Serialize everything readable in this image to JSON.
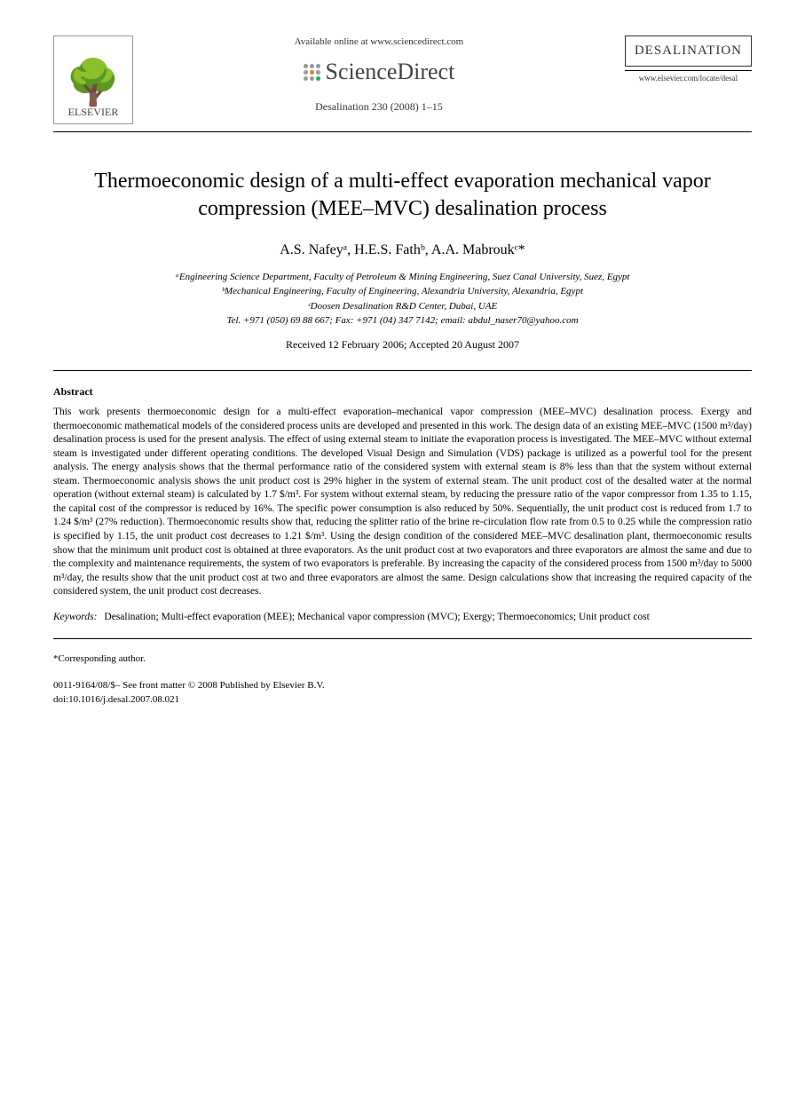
{
  "header": {
    "publisher": "ELSEVIER",
    "available_text": "Available online at www.sciencedirect.com",
    "platform": "ScienceDirect",
    "journal_ref": "Desalination 230 (2008) 1–15",
    "journal_name": "DESALINATION",
    "journal_url": "www.elsevier.com/locate/desal"
  },
  "title": "Thermoeconomic design of a multi-effect evaporation mechanical vapor compression (MEE–MVC) desalination process",
  "authors": "A.S. Nafeyᵃ, H.E.S. Fathᵇ, A.A. Mabroukᶜ*",
  "affiliations": {
    "a": "ᵃEngineering Science Department, Faculty of Petroleum & Mining Engineering, Suez Canal University, Suez, Egypt",
    "b": "ᵇMechanical Engineering, Faculty of Engineering, Alexandria University, Alexandria, Egypt",
    "c": "ᶜDoosen Desalination R&D Center, Dubai, UAE",
    "contact": "Tel. +971 (050) 69 88 667; Fax: +971 (04) 347 7142; email: abdul_naser70@yahoo.com"
  },
  "dates": "Received 12 February 2006; Accepted 20 August 2007",
  "abstract": {
    "heading": "Abstract",
    "text": "This work presents thermoeconomic design for a multi-effect evaporation–mechanical vapor compression (MEE–MVC) desalination process. Exergy and thermoeconomic mathematical models of the considered process units are developed and presented in this work. The design data of an existing MEE–MVC (1500 m³/day) desalination process is used for the present analysis. The effect of using external steam to initiate the evaporation process is investigated. The MEE–MVC without external steam is investigated under different operating conditions. The developed Visual Design and Simulation (VDS) package is utilized as a powerful tool for the present analysis. The energy analysis shows that the thermal performance ratio of the considered system with external steam is 8% less than that the system without external steam. Thermoeconomic analysis shows the unit product cost is 29% higher in the system of external steam. The unit product cost of the desalted water at the normal operation (without external steam) is calculated by 1.7 $/m³. For system without external steam, by reducing the pressure ratio of the vapor compressor from 1.35 to 1.15, the capital cost of the compressor is reduced by 16%. The specific power consumption is also reduced by 50%. Sequentially, the unit product cost is reduced from 1.7 to 1.24 $/m³ (27% reduction). Thermoeconomic results show that, reducing the splitter ratio of the brine re-circulation flow rate from 0.5 to 0.25 while the compression ratio is specified by 1.15, the unit product cost decreases to 1.21 $/m³. Using the design condition of the considered MEE–MVC desalination plant, thermoeconomic results show that the minimum unit product cost is obtained at three evaporators. As the unit product cost at two evaporators and three evaporators are almost the same and due to the complexity and maintenance requirements, the system of two evaporators is preferable. By increasing the capacity of the considered process from 1500 m³/day to 5000 m³/day, the results show that the unit product cost at two and three evaporators are almost the same. Design calculations show that increasing the required capacity of the considered system, the unit product cost decreases."
  },
  "keywords": {
    "label": "Keywords:",
    "text": "Desalination; Multi-effect evaporation (MEE); Mechanical vapor compression (MVC); Exergy; Thermoeconomics; Unit product cost"
  },
  "corresponding": "*Corresponding author.",
  "footer": {
    "line1": "0011-9164/08/$– See front matter © 2008 Published by Elsevier B.V.",
    "line2": "doi:10.1016/j.desal.2007.08.021"
  },
  "colors": {
    "text": "#000000",
    "background": "#ffffff",
    "logo_gray": "#666666",
    "border": "#000000"
  }
}
